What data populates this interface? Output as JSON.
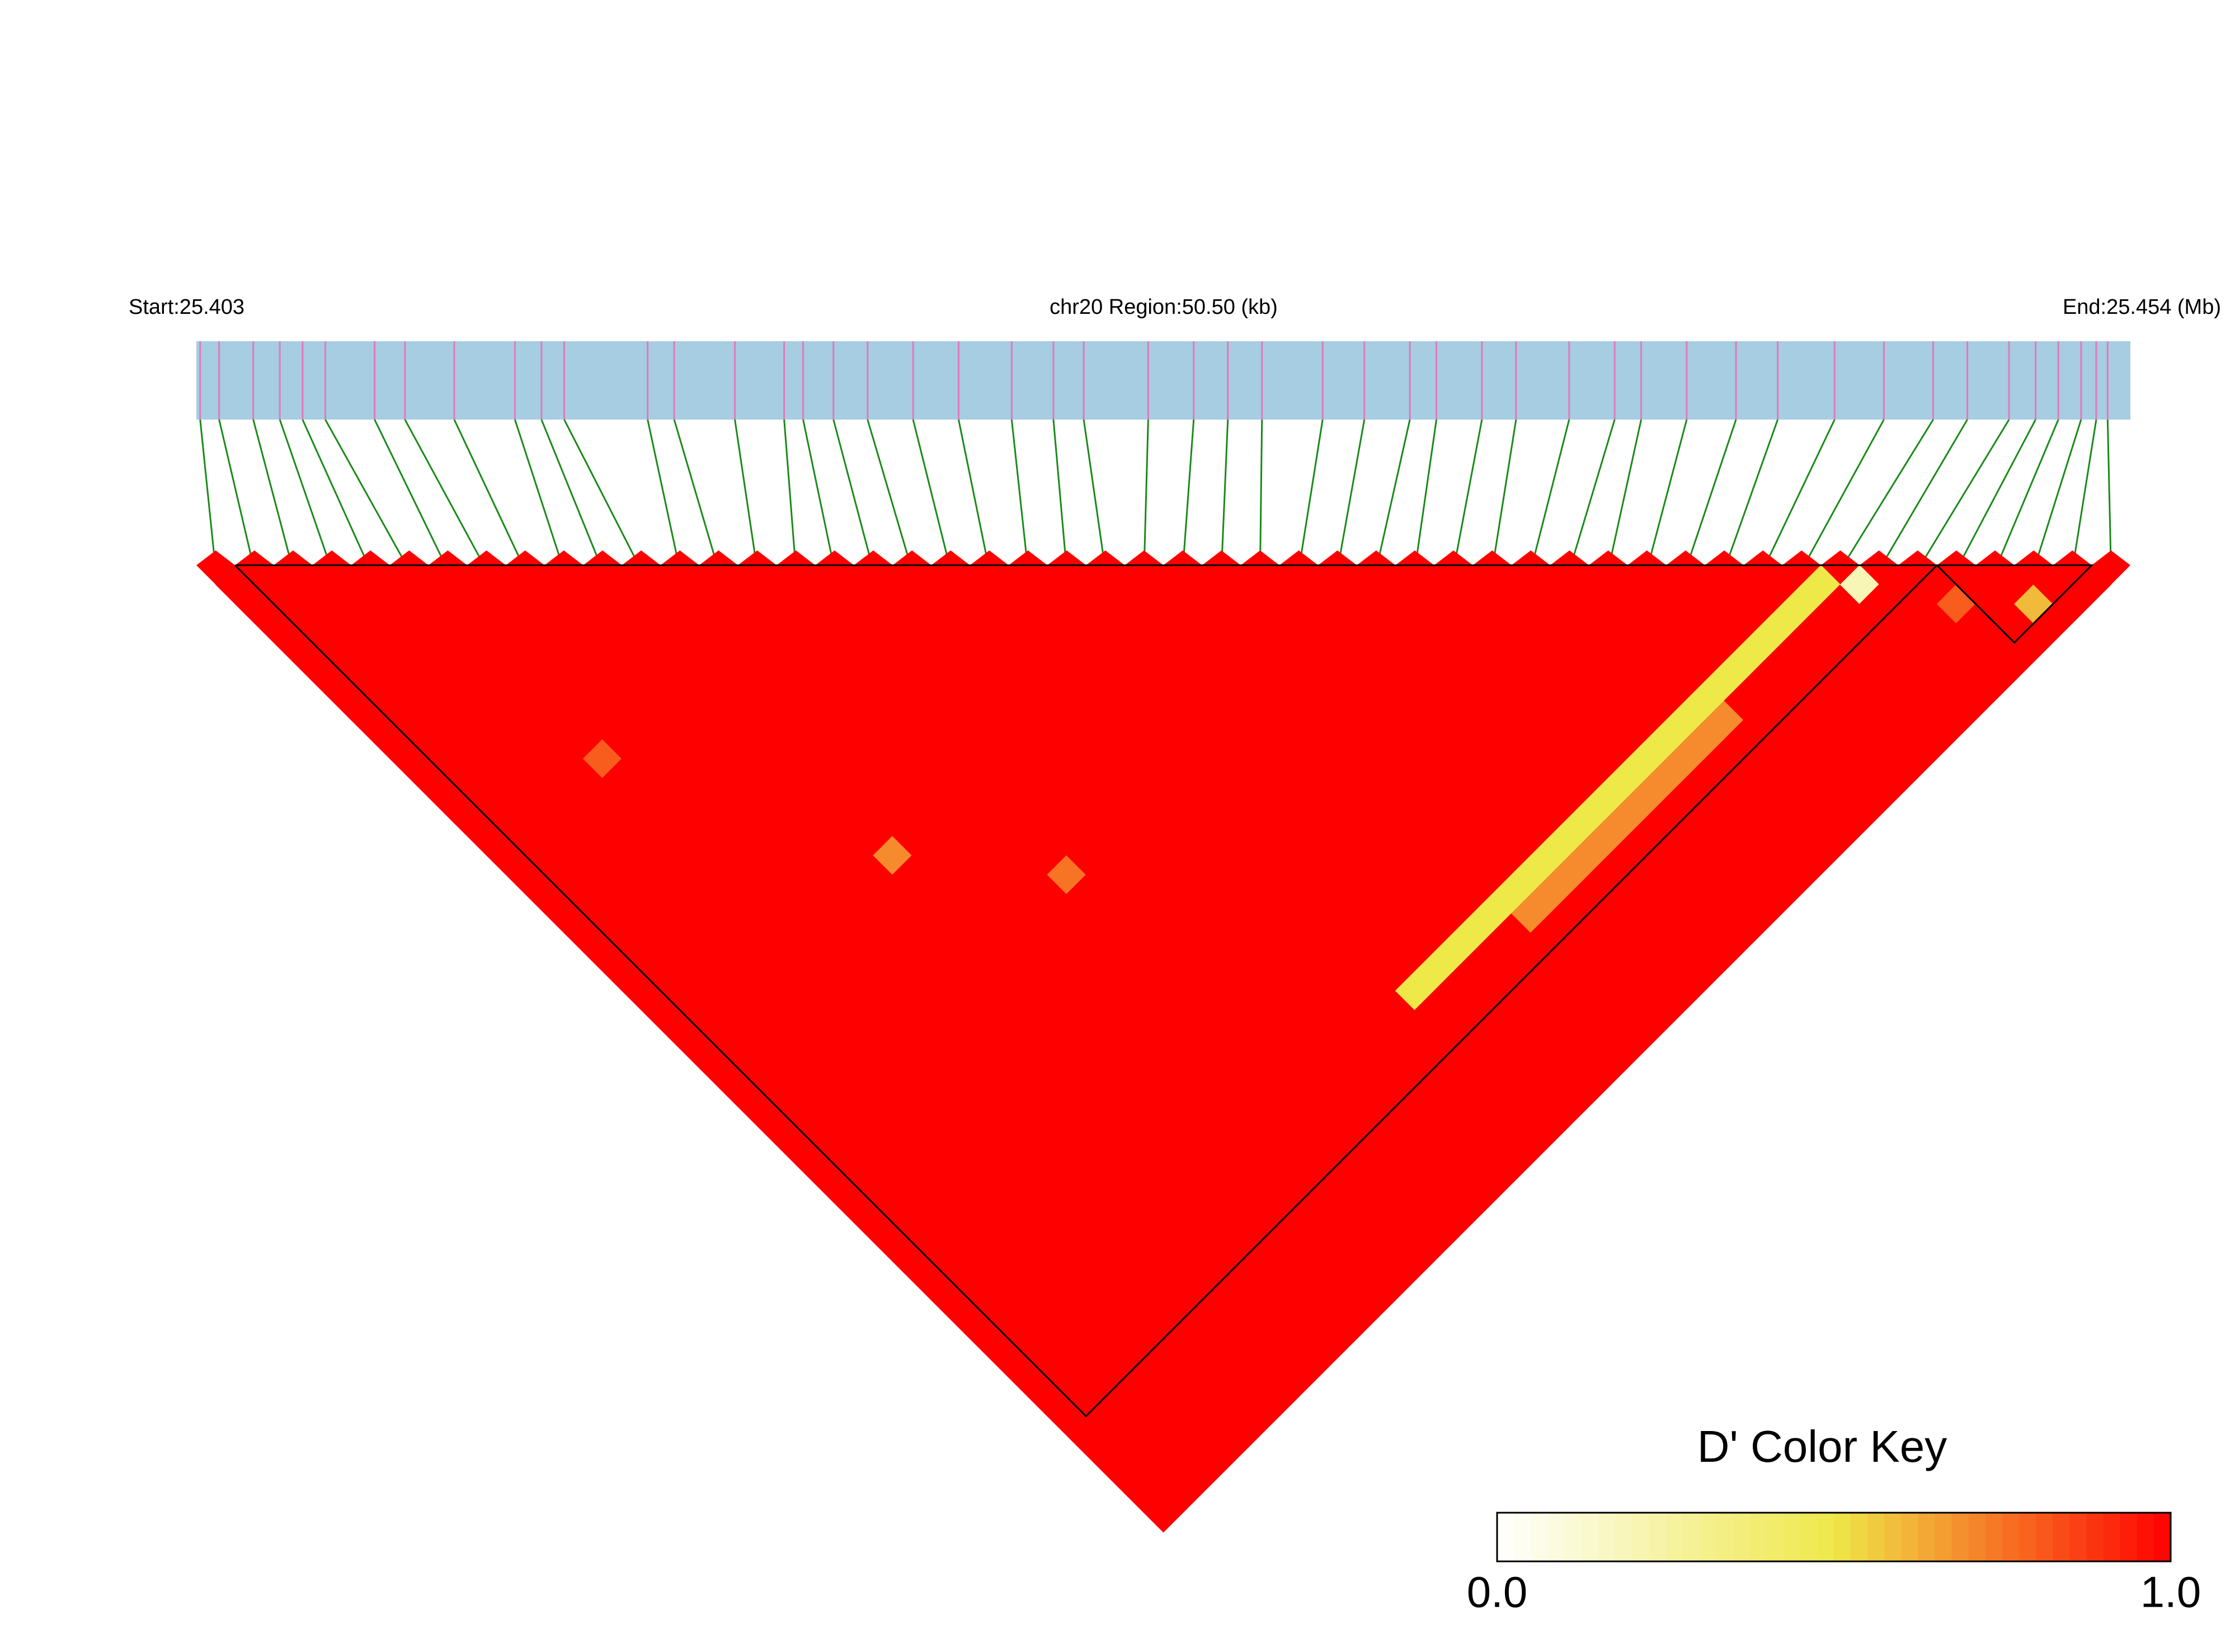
{
  "chart_data": {
    "type": "heatmap",
    "start_label": "Start:25.403",
    "region_label": "chr20 Region:50.50 (kb)",
    "end_label": "End:25.454 (Mb)",
    "xlim": [
      25.403,
      25.454
    ],
    "positions": [
      25.4031,
      25.4036,
      25.4045,
      25.4052,
      25.4058,
      25.4064,
      25.4077,
      25.4085,
      25.4098,
      25.4114,
      25.4121,
      25.4127,
      25.4149,
      25.4156,
      25.4172,
      25.4185,
      25.419,
      25.4198,
      25.4207,
      25.4219,
      25.4231,
      25.4245,
      25.4256,
      25.4264,
      25.4281,
      25.4293,
      25.4302,
      25.4311,
      25.4327,
      25.4338,
      25.435,
      25.4357,
      25.4369,
      25.4378,
      25.4392,
      25.4404,
      25.4411,
      25.4423,
      25.4436,
      25.4447,
      25.4462,
      25.4475,
      25.4488,
      25.4497,
      25.4508,
      25.4515,
      25.4521,
      25.4527,
      25.4531,
      25.4534
    ],
    "dprime": [
      [
        1,
        1,
        1,
        1,
        1,
        1,
        1,
        1,
        1,
        1,
        1,
        1,
        1,
        1,
        1,
        1,
        1,
        1,
        1,
        1,
        1,
        1,
        1,
        1,
        1,
        1,
        1,
        1,
        1,
        1,
        1,
        1,
        1,
        1,
        1,
        1,
        1,
        1,
        1,
        1,
        1,
        1,
        1,
        1,
        1,
        1,
        1,
        1,
        1
      ],
      [
        1,
        1,
        1,
        1,
        1,
        1,
        1,
        1,
        1,
        1,
        1,
        1,
        1,
        1,
        1,
        1,
        1,
        1,
        1,
        1,
        1,
        1,
        1,
        1,
        1,
        1,
        1,
        1,
        1,
        1,
        1,
        1,
        1,
        1,
        1,
        1,
        1,
        1,
        1,
        1,
        1,
        1,
        1,
        1,
        1,
        1,
        1,
        1
      ],
      [
        1,
        1,
        1,
        1,
        1,
        1,
        1,
        1,
        1,
        1,
        1,
        1,
        1,
        1,
        1,
        1,
        1,
        1,
        1,
        1,
        1,
        1,
        1,
        1,
        1,
        1,
        1,
        1,
        1,
        1,
        1,
        1,
        1,
        1,
        1,
        1,
        1,
        1,
        1,
        1,
        1,
        1,
        1,
        1,
        1,
        1,
        1
      ],
      [
        1,
        1,
        1,
        1,
        1,
        1,
        1,
        1,
        1,
        1,
        1,
        1,
        1,
        1,
        1,
        1,
        1,
        1,
        1,
        1,
        1,
        1,
        1,
        1,
        1,
        1,
        1,
        1,
        1,
        1,
        1,
        1,
        1,
        1,
        1,
        1,
        1,
        1,
        1,
        1,
        1,
        1,
        1,
        1,
        1,
        1
      ],
      [
        1,
        1,
        1,
        1,
        1,
        1,
        1,
        1,
        1,
        1,
        1,
        1,
        1,
        1,
        1,
        1,
        1,
        1,
        1,
        1,
        1,
        1,
        1,
        1,
        1,
        1,
        1,
        1,
        1,
        1,
        1,
        1,
        1,
        1,
        1,
        1,
        1,
        1,
        1,
        1,
        1,
        1,
        1,
        1,
        1
      ],
      [
        1,
        1,
        1,
        1,
        1,
        1,
        1,
        1,
        1,
        0.8,
        1,
        1,
        1,
        1,
        1,
        1,
        1,
        1,
        1,
        1,
        1,
        1,
        1,
        1,
        1,
        1,
        1,
        1,
        1,
        1,
        1,
        1,
        1,
        1,
        1,
        1,
        1,
        1,
        1,
        1,
        1,
        1,
        1,
        1
      ],
      [
        1,
        1,
        1,
        1,
        1,
        1,
        1,
        1,
        1,
        1,
        1,
        1,
        1,
        1,
        1,
        1,
        1,
        1,
        1,
        1,
        1,
        1,
        1,
        1,
        1,
        1,
        1,
        1,
        1,
        1,
        1,
        1,
        1,
        1,
        1,
        1,
        1,
        1,
        1,
        1,
        1,
        1,
        1
      ],
      [
        1,
        1,
        1,
        1,
        1,
        1,
        1,
        1,
        1,
        1,
        1,
        1,
        1,
        1,
        1,
        1,
        1,
        1,
        1,
        1,
        1,
        1,
        1,
        1,
        1,
        1,
        1,
        1,
        1,
        1,
        1,
        1,
        1,
        1,
        1,
        1,
        1,
        1,
        1,
        1,
        1,
        1
      ],
      [
        1,
        1,
        1,
        1,
        1,
        1,
        1,
        1,
        1,
        1,
        1,
        1,
        1,
        1,
        1,
        1,
        1,
        1,
        1,
        1,
        1,
        1,
        1,
        1,
        1,
        1,
        1,
        1,
        1,
        1,
        1,
        1,
        1,
        1,
        1,
        1,
        1,
        1,
        1,
        1,
        1
      ],
      [
        1,
        1,
        1,
        1,
        1,
        1,
        1,
        1,
        1,
        1,
        1,
        1,
        1,
        1,
        1,
        1,
        1,
        1,
        1,
        1,
        1,
        1,
        1,
        1,
        1,
        1,
        1,
        1,
        1,
        1,
        1,
        1,
        1,
        1,
        1,
        1,
        1,
        1,
        1,
        1
      ],
      [
        1,
        1,
        1,
        1,
        1,
        1,
        1,
        1,
        1,
        1,
        1,
        1,
        1,
        1,
        0.7,
        1,
        1,
        1,
        1,
        1,
        1,
        1,
        1,
        1,
        1,
        1,
        1,
        1,
        1,
        1,
        1,
        1,
        1,
        1,
        1,
        1,
        1,
        1,
        1
      ],
      [
        1,
        1,
        1,
        1,
        1,
        1,
        1,
        1,
        1,
        1,
        1,
        1,
        1,
        1,
        1,
        1,
        1,
        1,
        1,
        1,
        1,
        1,
        1,
        1,
        1,
        1,
        1,
        1,
        1,
        1,
        1,
        1,
        1,
        1,
        1,
        1,
        1,
        1
      ],
      [
        1,
        1,
        1,
        1,
        1,
        1,
        1,
        1,
        1,
        1,
        1,
        1,
        1,
        1,
        1,
        1,
        1,
        1,
        1,
        1,
        1,
        1,
        1,
        1,
        1,
        1,
        1,
        1,
        1,
        1,
        1,
        1,
        1,
        1,
        1,
        1,
        1
      ],
      [
        1,
        1,
        1,
        1,
        1,
        1,
        1,
        1,
        1,
        1,
        1,
        1,
        1,
        1,
        1,
        1,
        1,
        1,
        1,
        1,
        1,
        1,
        1,
        1,
        1,
        1,
        1,
        1,
        1,
        1,
        1,
        1,
        1,
        1,
        1,
        1
      ],
      [
        1,
        1,
        1,
        1,
        1,
        1,
        1,
        1,
        1,
        1,
        1,
        1,
        1,
        1,
        1,
        0.75,
        1,
        1,
        1,
        1,
        1,
        1,
        1,
        1,
        1,
        1,
        1,
        1,
        1,
        1,
        1,
        1,
        1,
        1,
        1
      ],
      [
        1,
        1,
        1,
        1,
        1,
        1,
        1,
        1,
        1,
        1,
        1,
        1,
        1,
        1,
        1,
        1,
        1,
        1,
        1,
        1,
        1,
        1,
        1,
        1,
        1,
        1,
        1,
        1,
        1,
        1,
        1,
        1,
        1,
        1
      ],
      [
        1,
        1,
        1,
        1,
        1,
        1,
        1,
        1,
        1,
        1,
        1,
        1,
        1,
        1,
        1,
        1,
        1,
        1,
        1,
        1,
        1,
        1,
        1,
        1,
        1,
        1,
        1,
        1,
        1,
        1,
        1,
        1,
        1
      ],
      [
        1,
        1,
        1,
        1,
        1,
        1,
        1,
        1,
        1,
        1,
        1,
        1,
        1,
        1,
        1,
        1,
        1,
        1,
        1,
        1,
        1,
        1,
        1,
        1,
        1,
        1,
        1,
        1,
        1,
        1,
        1,
        1
      ],
      [
        1,
        1,
        1,
        1,
        1,
        1,
        1,
        1,
        1,
        1,
        1,
        1,
        1,
        1,
        1,
        1,
        1,
        1,
        1,
        1,
        1,
        1,
        1,
        1,
        1,
        1,
        1,
        1,
        1,
        1,
        1
      ],
      [
        1,
        1,
        1,
        1,
        1,
        1,
        1,
        1,
        1,
        1,
        1,
        1,
        1,
        1,
        1,
        1,
        1,
        1,
        1,
        1,
        1,
        1,
        1,
        1,
        1,
        1,
        1,
        1,
        1,
        1
      ],
      [
        1,
        1,
        1,
        1,
        1,
        1,
        1,
        1,
        1,
        1,
        1,
        1,
        1,
        1,
        1,
        1,
        1,
        1,
        1,
        1,
        1,
        0.5,
        1,
        1,
        1,
        1,
        1,
        1,
        1
      ],
      [
        1,
        1,
        1,
        1,
        1,
        1,
        1,
        1,
        1,
        1,
        1,
        1,
        1,
        1,
        1,
        1,
        1,
        1,
        1,
        1,
        0.5,
        1,
        1,
        1,
        1,
        1,
        1,
        1
      ],
      [
        1,
        1,
        1,
        1,
        1,
        1,
        1,
        1,
        1,
        1,
        1,
        1,
        1,
        1,
        1,
        1,
        1,
        1,
        1,
        0.5,
        1,
        1,
        1,
        1,
        1,
        1,
        1
      ],
      [
        1,
        1,
        1,
        1,
        1,
        1,
        1,
        1,
        1,
        1,
        1,
        1,
        1,
        1,
        1,
        1,
        1,
        1,
        0.5,
        1,
        1,
        1,
        1,
        1,
        1,
        1
      ],
      [
        1,
        1,
        1,
        1,
        1,
        1,
        1,
        1,
        1,
        1,
        1,
        1,
        1,
        1,
        1,
        1,
        1,
        0.5,
        1,
        1,
        1,
        1,
        1,
        1,
        1
      ],
      [
        1,
        1,
        1,
        1,
        1,
        1,
        1,
        1,
        1,
        1,
        1,
        1,
        1,
        1,
        1,
        1,
        0.5,
        0.7,
        1,
        1,
        1,
        1,
        1,
        1
      ],
      [
        1,
        1,
        1,
        1,
        1,
        1,
        1,
        1,
        1,
        1,
        1,
        1,
        1,
        1,
        1,
        0.5,
        0.7,
        1,
        1,
        1,
        1,
        1,
        1
      ],
      [
        1,
        1,
        1,
        1,
        1,
        1,
        1,
        1,
        1,
        1,
        1,
        1,
        1,
        1,
        0.5,
        0.7,
        1,
        1,
        1,
        1,
        1,
        1
      ],
      [
        1,
        1,
        1,
        1,
        1,
        1,
        1,
        1,
        1,
        1,
        1,
        1,
        1,
        0.5,
        0.7,
        1,
        1,
        1,
        1,
        1,
        1
      ],
      [
        1,
        1,
        1,
        1,
        1,
        1,
        1,
        1,
        1,
        1,
        1,
        1,
        0.5,
        0.7,
        1,
        1,
        1,
        1,
        1,
        1
      ],
      [
        1,
        1,
        1,
        1,
        1,
        1,
        1,
        1,
        1,
        1,
        1,
        0.5,
        0.7,
        1,
        1,
        1,
        1,
        1,
        1
      ],
      [
        1,
        1,
        1,
        1,
        1,
        1,
        1,
        1,
        1,
        1,
        0.5,
        0.7,
        1,
        1,
        1,
        1,
        1,
        1
      ],
      [
        1,
        1,
        1,
        1,
        1,
        1,
        1,
        1,
        1,
        0.5,
        0.7,
        1,
        1,
        1,
        1,
        1,
        1
      ],
      [
        1,
        1,
        1,
        1,
        1,
        1,
        1,
        1,
        0.5,
        0.7,
        1,
        1,
        1,
        1,
        1,
        1
      ],
      [
        1,
        1,
        1,
        1,
        1,
        1,
        1,
        0.5,
        0.7,
        1,
        1,
        1,
        1,
        1,
        1
      ],
      [
        1,
        1,
        1,
        1,
        1,
        1,
        0.5,
        0.7,
        1,
        1,
        1,
        1,
        1,
        1
      ],
      [
        1,
        1,
        1,
        1,
        1,
        0.5,
        1,
        1,
        1,
        1,
        1,
        1,
        1
      ],
      [
        1,
        1,
        1,
        1,
        0.5,
        1,
        1,
        1,
        1,
        1,
        1,
        1
      ],
      [
        1,
        1,
        1,
        0.5,
        1,
        1,
        1,
        1,
        1,
        1,
        1
      ],
      [
        1,
        1,
        0.5,
        1,
        1,
        1,
        1,
        1,
        1,
        1
      ],
      [
        1,
        0.5,
        1,
        1,
        1,
        1,
        1,
        1,
        1
      ],
      [
        0.5,
        1,
        1,
        1,
        1,
        1,
        1,
        1
      ],
      [
        0.2,
        1,
        1,
        1,
        1,
        1,
        1
      ],
      [
        1,
        1,
        1,
        1,
        1,
        1
      ],
      [
        1,
        0.8,
        1,
        1,
        1
      ],
      [
        1,
        1,
        1,
        1
      ],
      [
        1,
        0.6,
        1
      ],
      [
        1,
        1
      ],
      [
        1
      ]
    ],
    "blocks": [
      [
        1,
        44
      ],
      [
        45,
        48
      ]
    ],
    "bar_color": "#a6cde1",
    "tick_color": "#e377c2",
    "link_color": "#1a8a1a",
    "key": {
      "title": "D' Color Key",
      "colors": [
        "#ffffff",
        "#eee849",
        "#ff0000"
      ],
      "ticks": [
        {
          "value": 0,
          "label": "0.0"
        },
        {
          "value": 1,
          "label": "1.0"
        }
      ]
    }
  }
}
